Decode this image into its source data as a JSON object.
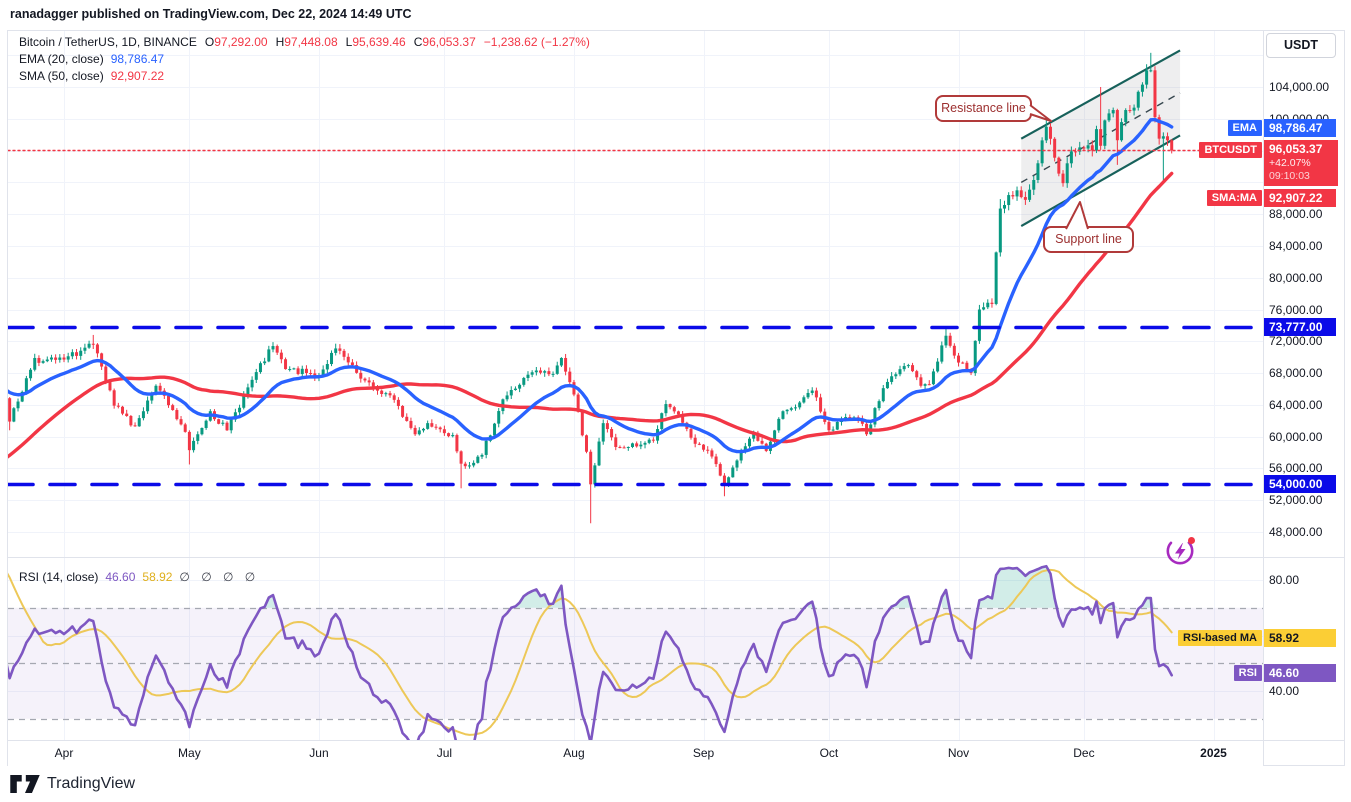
{
  "header": {
    "published_line": "ranadagger published on TradingView.com, Dec 22, 2024 14:49 UTC"
  },
  "legend": {
    "symbol": "Bitcoin / TetherUS, 1D, BINANCE",
    "ohlc": [
      {
        "label": "O",
        "value": "97,292.00"
      },
      {
        "label": "H",
        "value": "97,448.08"
      },
      {
        "label": "L",
        "value": "95,639.46"
      },
      {
        "label": "C",
        "value": "96,053.37"
      }
    ],
    "change": "−1,238.62 (−1.27%)",
    "ema_label": "EMA (20, close)",
    "ema_value": "98,786.47",
    "sma_label": "SMA (50, close)",
    "sma_value": "92,907.22"
  },
  "rsi_legend": {
    "label": "RSI (14, close)",
    "rsi_value": "46.60",
    "ma_value": "58.92",
    "empty_slots": "∅ ∅ ∅ ∅"
  },
  "price_axis": {
    "currency_button": "USDT",
    "ticks": [
      {
        "label": "104,000.00",
        "price": 104000
      },
      {
        "label": "100,000.00",
        "price": 100000
      },
      {
        "label": "88,000.00",
        "price": 88000
      },
      {
        "label": "84,000.00",
        "price": 84000
      },
      {
        "label": "80,000.00",
        "price": 80000
      },
      {
        "label": "76,000.00",
        "price": 76000
      },
      {
        "label": "72,000.00",
        "price": 72000
      },
      {
        "label": "68,000.00",
        "price": 68000
      },
      {
        "label": "64,000.00",
        "price": 64000
      },
      {
        "label": "60,000.00",
        "price": 60000
      },
      {
        "label": "56,000.00",
        "price": 56000
      },
      {
        "label": "52,000.00",
        "price": 52000
      },
      {
        "label": "48,000.00",
        "price": 48000
      }
    ],
    "ema_tag": "EMA",
    "ema_value": "98,786.47",
    "ema_price": 98786.47,
    "symbol_tag": "BTCUSDT",
    "last_price": "96,053.37",
    "change_pct": "+42.07%",
    "countdown": "09:10:03",
    "sma_tag": "SMA:MA",
    "sma_value": "92,907.22",
    "sma_price": 92907.22,
    "level_upper": "73,777.00",
    "level_lower": "54,000.00"
  },
  "rsi_axis": {
    "tick_top": "80.00",
    "tick_bottom": "40.00",
    "ma_tag": "RSI-based MA",
    "ma_value": "58.92",
    "ma_level": 58.92,
    "rsi_tag": "RSI",
    "rsi_value": "46.60",
    "rsi_level": 46.6
  },
  "annotations": {
    "resistance": "Resistance line",
    "support": "Support line"
  },
  "footer": {
    "brand": "TradingView"
  },
  "colors": {
    "up": "#089981",
    "down": "#F23645",
    "ema": "#2962FF",
    "sma": "#F23645",
    "alert_line": "#0B0BE8",
    "price_line": "#F23645",
    "channel": "#17615B",
    "channel_fill": "rgba(120,123,134,0.13)",
    "channel_mid": "#37474F",
    "rsi": "#7E57C2",
    "rsi_ma": "#EDC858",
    "rsi_band": "rgba(126,87,194,0.08)",
    "grid": "#F0F3FA",
    "border": "#E0E3EB",
    "text": "#131722",
    "overbought_fill": "rgba(8,153,129,0.18)"
  },
  "chart_data": {
    "type": "candlestick",
    "title": "Bitcoin / TetherUS, 1D, BINANCE",
    "price_axis_range": [
      46000,
      111000
    ],
    "rsi_axis_range": [
      20,
      88
    ],
    "rsi_levels": [
      30,
      50,
      70
    ],
    "rsi_band": [
      30,
      70
    ],
    "rsi_last": 46.6,
    "rsi_ma_last": 58.92,
    "ema_period": 20,
    "sma_period": 50,
    "rsi_period": 14,
    "day_zero_date": "2024-01-15",
    "first_visible_day": 62,
    "last_day": 342,
    "close_keypoints": [
      [
        0,
        42600
      ],
      [
        8,
        39900
      ],
      [
        17,
        43100
      ],
      [
        28,
        49900
      ],
      [
        44,
        62500
      ],
      [
        50,
        63800
      ],
      [
        53,
        68300
      ],
      [
        58,
        73100
      ],
      [
        61,
        65300
      ],
      [
        62,
        68400
      ],
      [
        64,
        61900
      ],
      [
        70,
        69900
      ],
      [
        72,
        69500
      ],
      [
        77,
        69700
      ],
      [
        84,
        71600
      ],
      [
        89,
        63900
      ],
      [
        94,
        61300
      ],
      [
        99,
        66400
      ],
      [
        106,
        60600
      ],
      [
        107,
        58300
      ],
      [
        112,
        63200
      ],
      [
        116,
        60800
      ],
      [
        121,
        66200
      ],
      [
        127,
        71400
      ],
      [
        130,
        68500
      ],
      [
        138,
        67700
      ],
      [
        142,
        71100
      ],
      [
        148,
        67300
      ],
      [
        151,
        66000
      ],
      [
        155,
        65200
      ],
      [
        161,
        60300
      ],
      [
        164,
        61700
      ],
      [
        170,
        60200
      ],
      [
        172,
        56600
      ],
      [
        175,
        56700
      ],
      [
        177,
        57700
      ],
      [
        182,
        64700
      ],
      [
        189,
        68100
      ],
      [
        194,
        67900
      ],
      [
        196,
        69900
      ],
      [
        199,
        65300
      ],
      [
        202,
        58100
      ],
      [
        203,
        54000
      ],
      [
        206,
        61700
      ],
      [
        209,
        58700
      ],
      [
        212,
        58700
      ],
      [
        218,
        59500
      ],
      [
        221,
        64100
      ],
      [
        224,
        62800
      ],
      [
        228,
        59100
      ],
      [
        232,
        57500
      ],
      [
        235,
        53900
      ],
      [
        238,
        57000
      ],
      [
        242,
        60500
      ],
      [
        245,
        58200
      ],
      [
        249,
        63200
      ],
      [
        253,
        64300
      ],
      [
        256,
        65800
      ],
      [
        260,
        60800
      ],
      [
        263,
        62100
      ],
      [
        267,
        62200
      ],
      [
        269,
        60300
      ],
      [
        273,
        66100
      ],
      [
        275,
        67600
      ],
      [
        279,
        69000
      ],
      [
        282,
        66400
      ],
      [
        284,
        66600
      ],
      [
        288,
        72700
      ],
      [
        290,
        70200
      ],
      [
        294,
        68000
      ],
      [
        296,
        76000
      ],
      [
        299,
        76700
      ],
      [
        301,
        88700
      ],
      [
        303,
        90400
      ],
      [
        305,
        91000
      ],
      [
        307,
        89800
      ],
      [
        309,
        92300
      ],
      [
        312,
        99000
      ],
      [
        315,
        93100
      ],
      [
        316,
        91900
      ],
      [
        318,
        95900
      ],
      [
        320,
        96400
      ],
      [
        323,
        96000
      ],
      [
        324,
        98700
      ],
      [
        325,
        96600
      ],
      [
        326,
        99800
      ],
      [
        328,
        101100
      ],
      [
        329,
        97300
      ],
      [
        331,
        101100
      ],
      [
        333,
        101400
      ],
      [
        335,
        104300
      ],
      [
        336,
        106100
      ],
      [
        337,
        106100
      ],
      [
        338,
        100200
      ],
      [
        339,
        97500
      ],
      [
        340,
        97800
      ],
      [
        341,
        97292
      ],
      [
        342,
        96053.37
      ]
    ],
    "wick_overrides": [
      {
        "day": 58,
        "high": 73700
      },
      {
        "day": 64,
        "low": 60800
      },
      {
        "day": 84,
        "high": 72800
      },
      {
        "day": 107,
        "low": 56500
      },
      {
        "day": 127,
        "high": 71900
      },
      {
        "day": 142,
        "high": 71700
      },
      {
        "day": 172,
        "low": 53500
      },
      {
        "day": 196,
        "high": 70000
      },
      {
        "day": 203,
        "low": 49100
      },
      {
        "day": 235,
        "low": 52500
      },
      {
        "day": 288,
        "high": 73600
      },
      {
        "day": 301,
        "high": 89900
      },
      {
        "day": 312,
        "high": 99800
      },
      {
        "day": 325,
        "high": 104000
      },
      {
        "day": 329,
        "low": 94200
      },
      {
        "day": 337,
        "high": 108300
      },
      {
        "day": 340,
        "low": 92200
      },
      {
        "day": 342,
        "high": 97448.08,
        "low": 95639.46
      }
    ],
    "last_candle": {
      "open": 97292.0,
      "high": 97448.08,
      "low": 95639.46,
      "close": 96053.37
    },
    "channel": {
      "upper": [
        [
          306,
          97500
        ],
        [
          344,
          108600
        ]
      ],
      "lower": [
        [
          306,
          86500
        ],
        [
          344,
          97900
        ]
      ]
    },
    "horizontal_lines": [
      {
        "price": 73777,
        "label": "73,777.00"
      },
      {
        "price": 54000,
        "label": "54,000.00"
      }
    ],
    "price_line": {
      "price": 96053.37
    },
    "months": [
      {
        "label": "Apr",
        "day": 77
      },
      {
        "label": "May",
        "day": 107
      },
      {
        "label": "Jun",
        "day": 138
      },
      {
        "label": "Jul",
        "day": 168
      },
      {
        "label": "Aug",
        "day": 199
      },
      {
        "label": "Sep",
        "day": 230
      },
      {
        "label": "Oct",
        "day": 260
      },
      {
        "label": "Nov",
        "day": 291
      },
      {
        "label": "Dec",
        "day": 321
      },
      {
        "label": "2025",
        "day": 352,
        "bold": true
      }
    ]
  }
}
